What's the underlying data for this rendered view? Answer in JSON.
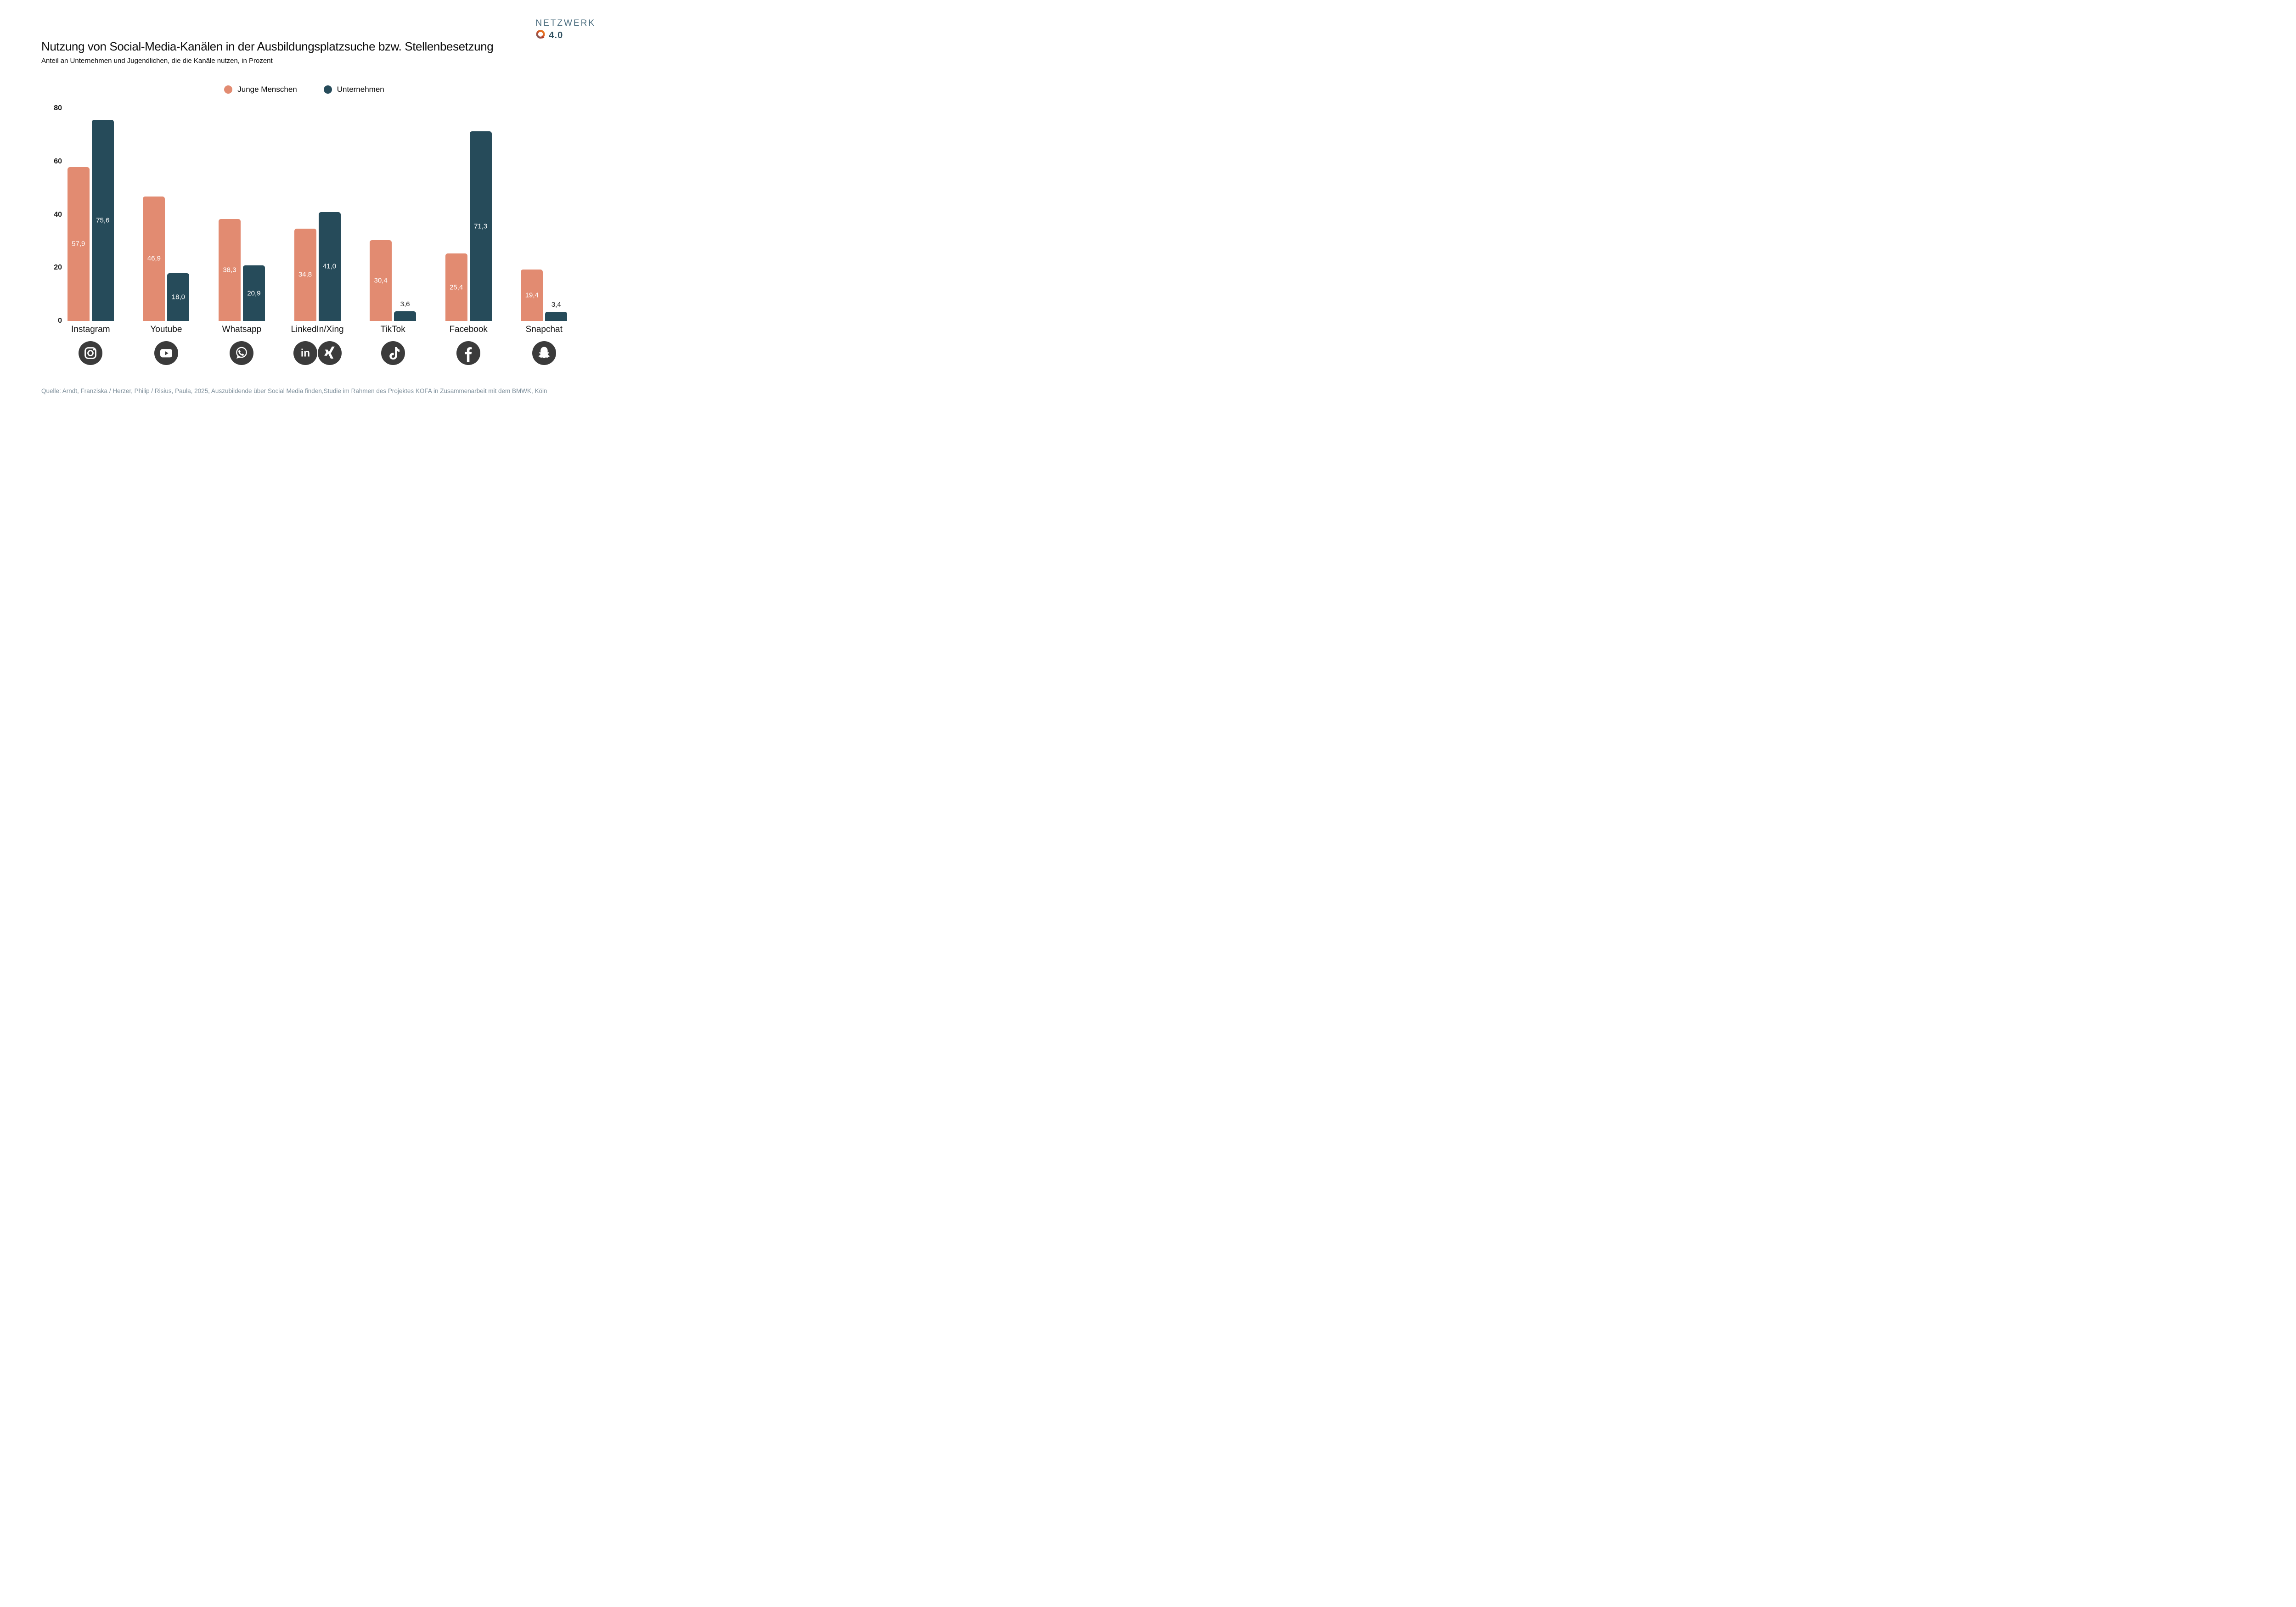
{
  "header": {
    "title": "Nutzung von Social-Media-Kanälen in der Ausbildungsplatzsuche bzw. Stellenbesetzung",
    "subtitle": "Anteil an Unternehmen und Jugendlichen, die die Kanäle nutzen, in Prozent"
  },
  "logo": {
    "name": "NETZWERK",
    "version": "4.0"
  },
  "legend": {
    "items": [
      {
        "label": "Junge Menschen",
        "color": "#E28B71"
      },
      {
        "label": "Unternehmen",
        "color": "#264B5A"
      }
    ]
  },
  "chart_data": {
    "type": "bar",
    "title": "Nutzung von Social-Media-Kanälen in der Ausbildungsplatzsuche bzw. Stellenbesetzung",
    "subtitle": "Anteil an Unternehmen und Jugendlichen, die die Kanäle nutzen, in Prozent",
    "categories": [
      "Instagram",
      "Youtube",
      "Whatsapp",
      "LinkedIn/Xing",
      "TikTok",
      "Facebook",
      "Snapchat"
    ],
    "category_icons": [
      [
        "instagram-icon"
      ],
      [
        "youtube-icon"
      ],
      [
        "whatsapp-icon"
      ],
      [
        "linkedin-icon",
        "xing-icon"
      ],
      [
        "tiktok-icon"
      ],
      [
        "facebook-icon"
      ],
      [
        "snapchat-icon"
      ]
    ],
    "series": [
      {
        "name": "Junge Menschen",
        "color": "#E28B71",
        "values": [
          57.9,
          46.9,
          38.3,
          34.8,
          30.4,
          25.4,
          19.4
        ]
      },
      {
        "name": "Unternehmen",
        "color": "#264B5A",
        "values": [
          75.6,
          18.0,
          20.9,
          41.0,
          3.6,
          71.3,
          3.4
        ]
      }
    ],
    "value_labels": [
      [
        "57,9",
        "46,9",
        "38,3",
        "34,8",
        "30,4",
        "25,4",
        "19,4"
      ],
      [
        "75,6",
        "18,0",
        "20,9",
        "41,0",
        "3,6",
        "71,3",
        "3,4"
      ]
    ],
    "ylabel": "",
    "xlabel": "",
    "ylim": [
      0,
      80
    ],
    "yticks": [
      0,
      20,
      40,
      60,
      80
    ],
    "grid": false,
    "legend_position": "top-center",
    "decimal_separator": ","
  },
  "colors": {
    "series_young": "#E28B71",
    "series_companies": "#264B5A",
    "icon_circle": "#3B3B3B",
    "source_text": "#7E8F9B",
    "logo_name": "#4A6C7E",
    "logo_version": "#2E4F5F"
  },
  "source": "Quelle: Arndt, Franziska / Herzer, Philip / Risius, Paula, 2025, Auszubildende über Social Media finden,Studie im Rahmen des Projektes KOFA in Zusammenarbeit mit dem BMWK, Köln"
}
